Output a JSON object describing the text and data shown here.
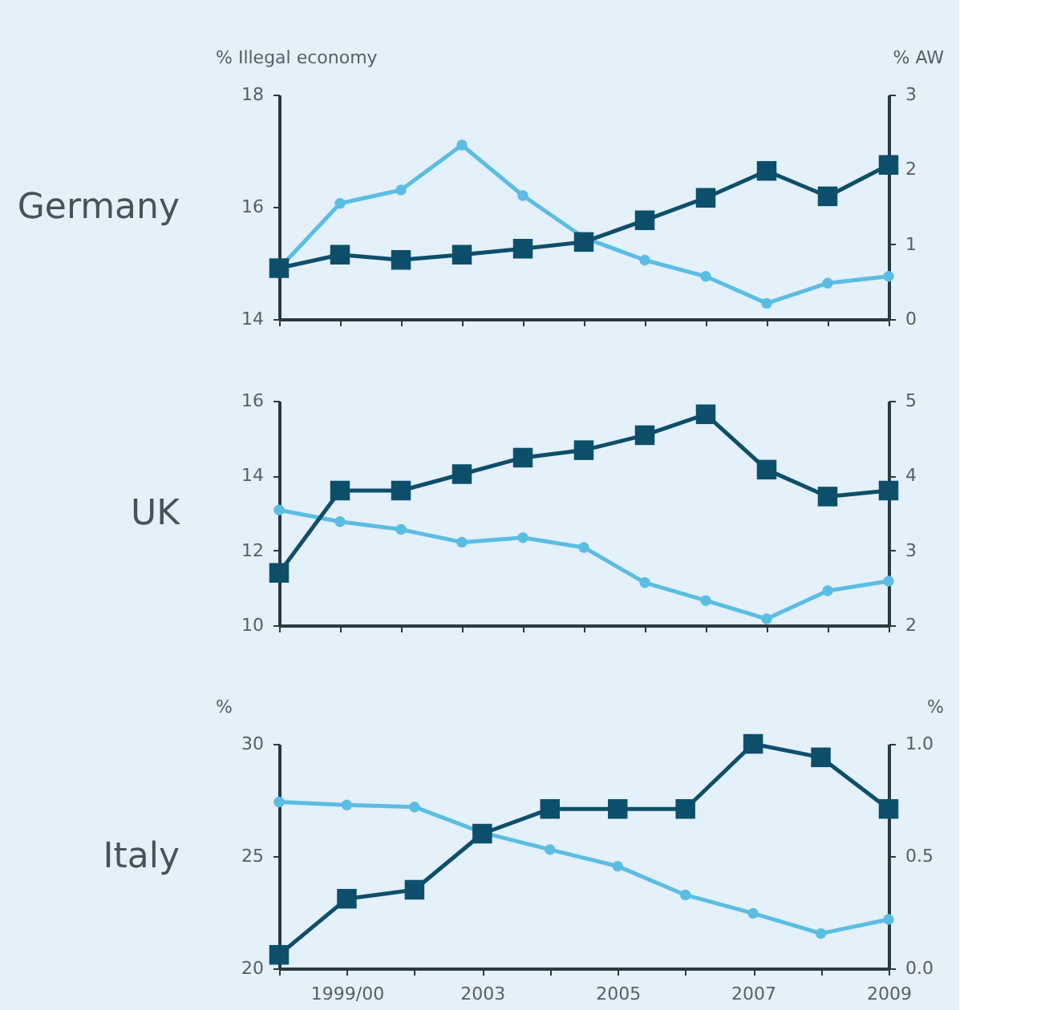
{
  "chart_data": [
    {
      "type": "line",
      "title": "Germany",
      "ylabel": "% Illegal economy",
      "y2label": "% AW",
      "categories": [
        null,
        null,
        null,
        null,
        null,
        null,
        null,
        null,
        null,
        null,
        null
      ],
      "ylim": [
        14,
        18
      ],
      "yticks": [
        14,
        16,
        18
      ],
      "y2lim": [
        0,
        3
      ],
      "y2ticks": [
        0,
        1,
        2,
        3
      ],
      "grid": false,
      "tick_labels": "y",
      "series": [
        {
          "color": "#5bbde3",
          "marker": "circle",
          "values": [
            14.9,
            16.06,
            16.3,
            17.1,
            16.2,
            15.45,
            15.05,
            14.76,
            14.28,
            14.64,
            14.76
          ]
        },
        {
          "color": "#0d4f6b",
          "marker": "square",
          "axis": "y2",
          "values": [
            0.68,
            0.86,
            0.79,
            0.86,
            0.94,
            1.03,
            1.32,
            1.62,
            1.98,
            1.64,
            2.06
          ]
        }
      ]
    },
    {
      "type": "line",
      "title": "UK",
      "categories": [
        null,
        null,
        null,
        null,
        null,
        null,
        null,
        null,
        null,
        null,
        null
      ],
      "ylim": [
        10,
        16
      ],
      "yticks": [
        10,
        12,
        14,
        16
      ],
      "y2lim": [
        2,
        5
      ],
      "y2ticks": [
        2,
        3,
        4,
        5
      ],
      "grid": false,
      "tick_labels": "y",
      "series": [
        {
          "color": "#5bbde3",
          "marker": "circle",
          "values": [
            13.08,
            12.77,
            12.56,
            12.22,
            12.34,
            12.08,
            11.14,
            10.66,
            10.17,
            10.92,
            11.18
          ]
        },
        {
          "color": "#0d4f6b",
          "marker": "square",
          "axis": "y2",
          "values": [
            2.7,
            3.8,
            3.8,
            4.02,
            4.24,
            4.34,
            4.54,
            4.82,
            4.08,
            3.72,
            3.8
          ]
        }
      ]
    },
    {
      "type": "line",
      "title": "Italy",
      "ylabel": "%",
      "y2label": "%",
      "categories": [
        null,
        "1999/00",
        null,
        "2003",
        null,
        "2005",
        null,
        "2007",
        null,
        "2009"
      ],
      "ylim": [
        20,
        30
      ],
      "yticks": [
        20,
        25,
        30
      ],
      "y2lim": [
        0,
        1
      ],
      "y2ticks": [
        {
          "value": 0,
          "label": "0.0"
        },
        {
          "value": 0.5,
          "label": "0.5"
        },
        {
          "value": 1,
          "label": "1.0"
        }
      ],
      "grid": false,
      "series": [
        {
          "color": "#5bbde3",
          "marker": "circle",
          "values": [
            27.41,
            27.28,
            27.19,
            26.05,
            25.29,
            24.55,
            23.27,
            22.45,
            21.55,
            22.18
          ]
        },
        {
          "color": "#0d4f6b",
          "marker": "square",
          "axis": "y2",
          "values": [
            0.06,
            0.31,
            0.35,
            0.6,
            0.71,
            0.71,
            0.71,
            1.0,
            0.94,
            0.71
          ]
        }
      ]
    }
  ]
}
